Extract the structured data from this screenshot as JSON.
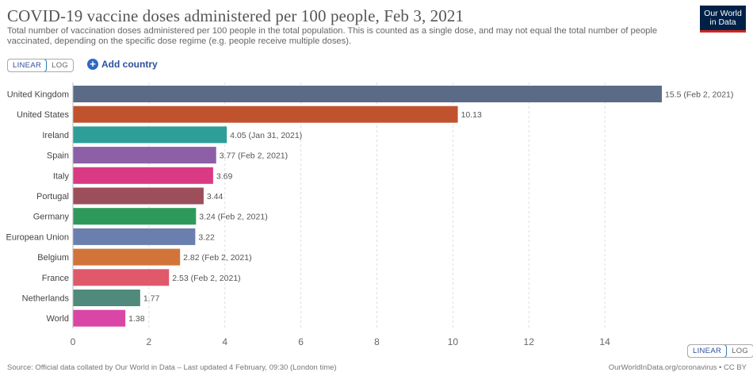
{
  "header": {
    "title": "COVID-19 vaccine doses administered per 100 people, Feb 3, 2021",
    "subtitle": "Total number of vaccination doses administered per 100 people in the total population. This is counted as a single dose, and may not equal the total number of people vaccinated, depending on the specific dose regime (e.g. people receive multiple doses).",
    "logo_line1": "Our World",
    "logo_line2": "in Data"
  },
  "controls": {
    "linear_label": "LINEAR",
    "log_label": "LOG",
    "add_country_label": "Add country"
  },
  "footer": {
    "source": "Source: Official data collated by Our World in Data – Last updated 4 February, 09:30 (London time)",
    "credit": "OurWorldInData.org/coronavirus • CC BY"
  },
  "chart_data": {
    "type": "bar",
    "orientation": "horizontal",
    "title": "COVID-19 vaccine doses administered per 100 people, Feb 3, 2021",
    "xlim": [
      0,
      15.5
    ],
    "xticks": [
      0,
      2,
      4,
      6,
      8,
      10,
      12,
      14
    ],
    "grid": true,
    "categories": [
      "United Kingdom",
      "United States",
      "Ireland",
      "Spain",
      "Italy",
      "Portugal",
      "Germany",
      "European Union",
      "Belgium",
      "France",
      "Netherlands",
      "World"
    ],
    "values": [
      15.5,
      10.13,
      4.05,
      3.77,
      3.69,
      3.44,
      3.24,
      3.22,
      2.82,
      2.53,
      1.77,
      1.38
    ],
    "value_labels": [
      "15.5 (Feb 2, 2021)",
      "10.13",
      "4.05 (Jan 31, 2021)",
      "3.77 (Feb 2, 2021)",
      "3.69",
      "3.44",
      "3.24 (Feb 2, 2021)",
      "3.22",
      "2.82 (Feb 2, 2021)",
      "2.53 (Feb 2, 2021)",
      "1.77",
      "1.38"
    ],
    "colors": [
      "#5b6b87",
      "#c0532e",
      "#2e9f98",
      "#8c5fa7",
      "#d93a83",
      "#9c4f5a",
      "#2d9a5c",
      "#6a7fae",
      "#d2743a",
      "#e0596b",
      "#4f8a7c",
      "#d946a6"
    ]
  }
}
